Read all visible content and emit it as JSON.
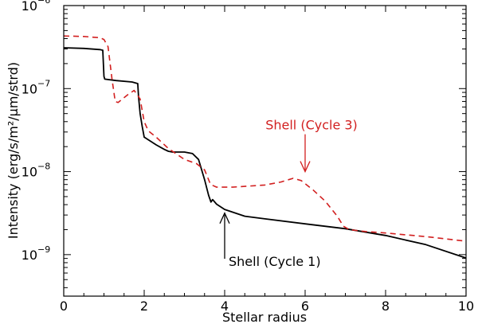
{
  "chart_data": {
    "type": "line",
    "title": "",
    "xlabel": "Stellar radius",
    "ylabel": "Intensity (erg/s/m²/μm/strd)",
    "xlim": [
      0,
      10
    ],
    "ylim_log10": [
      -9.5,
      -6
    ],
    "yscale": "log",
    "grid": false,
    "x_ticks": [
      0,
      2,
      4,
      6,
      8,
      10
    ],
    "x_tick_labels": [
      "0",
      "2",
      "4",
      "6",
      "8",
      "10"
    ],
    "y_ticks_log10": [
      -9,
      -8,
      -7,
      -6
    ],
    "y_tick_labels": [
      {
        "base": "10",
        "exp": "−9"
      },
      {
        "base": "10",
        "exp": "−8"
      },
      {
        "base": "10",
        "exp": "−7"
      },
      {
        "base": "10",
        "exp": "−6"
      }
    ],
    "series": [
      {
        "name": "Shell (Cycle 1)",
        "color": "#000000",
        "style": "solid",
        "x": [
          0,
          0.5,
          0.9,
          0.97,
          1.0,
          1.02,
          1.3,
          1.7,
          1.84,
          1.86,
          1.9,
          1.95,
          2.0,
          2.3,
          2.5,
          2.6,
          2.7,
          2.8,
          3.0,
          3.2,
          3.35,
          3.5,
          3.6,
          3.66,
          3.7,
          3.8,
          4.0,
          4.5,
          5.0,
          6.0,
          7.0,
          8.0,
          9.0,
          10.0
        ],
        "values": [
          3.1e-07,
          3.05e-07,
          2.95e-07,
          2.9e-07,
          1.4e-07,
          1.3e-07,
          1.25e-07,
          1.2e-07,
          1.15e-07,
          8e-08,
          5e-08,
          3.5e-08,
          2.6e-08,
          2.1e-08,
          1.85e-08,
          1.76e-08,
          1.72e-08,
          1.72e-08,
          1.72e-08,
          1.65e-08,
          1.4e-08,
          8e-09,
          5.2e-09,
          4.3e-09,
          4.6e-09,
          4.05e-09,
          3.5e-09,
          2.9e-09,
          2.7e-09,
          2.35e-09,
          2.05e-09,
          1.7e-09,
          1.32e-09,
          9.1e-10
        ]
      },
      {
        "name": "Shell (Cycle 3)",
        "color": "#d22020",
        "style": "dashed",
        "x": [
          0,
          0.5,
          0.9,
          1.0,
          1.1,
          1.2,
          1.28,
          1.35,
          1.6,
          1.75,
          1.9,
          2.0,
          2.1,
          2.3,
          2.6,
          3.0,
          3.3,
          3.5,
          3.65,
          3.8,
          4.2,
          5.0,
          5.4,
          5.7,
          5.9,
          6.2,
          6.5,
          6.8,
          6.95,
          7.1,
          7.5,
          8.0,
          9.0,
          10.0
        ],
        "values": [
          4.3e-07,
          4.25e-07,
          4.1e-07,
          3.9e-07,
          3.2e-07,
          1.3e-07,
          7e-08,
          6.8e-08,
          8.5e-08,
          9.5e-08,
          7.5e-08,
          4e-08,
          3.1e-08,
          2.6e-08,
          1.9e-08,
          1.4e-08,
          1.25e-08,
          1.05e-08,
          7e-09,
          6.5e-09,
          6.5e-09,
          6.9e-09,
          7.5e-09,
          8.3e-09,
          7.8e-09,
          6e-09,
          4.4e-09,
          2.9e-09,
          2.2e-09,
          2e-09,
          1.9e-09,
          1.82e-09,
          1.65e-09,
          1.45e-09
        ]
      }
    ],
    "annotations": [
      {
        "text": "Shell (Cycle 3)",
        "color": "#d22020",
        "arrow_x": 6.0,
        "arrow_from_log10": -7.55,
        "arrow_to_log10": -8.0
      },
      {
        "text": "Shell (Cycle 1)",
        "color": "#000000",
        "arrow_x": 4.0,
        "arrow_from_log10": -9.05,
        "arrow_to_log10": -8.5
      }
    ]
  }
}
